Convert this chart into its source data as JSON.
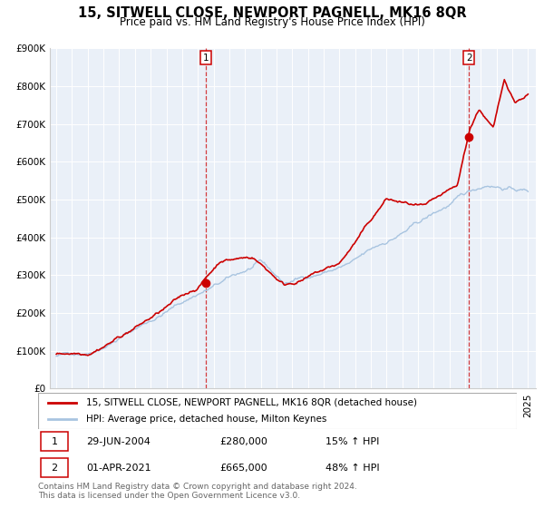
{
  "title": "15, SITWELL CLOSE, NEWPORT PAGNELL, MK16 8QR",
  "subtitle": "Price paid vs. HM Land Registry's House Price Index (HPI)",
  "ylim": [
    0,
    900000
  ],
  "yticks": [
    0,
    100000,
    200000,
    300000,
    400000,
    500000,
    600000,
    700000,
    800000,
    900000
  ],
  "ytick_labels": [
    "£0",
    "£100K",
    "£200K",
    "£300K",
    "£400K",
    "£500K",
    "£600K",
    "£700K",
    "£800K",
    "£900K"
  ],
  "xlim_start": 1994.6,
  "xlim_end": 2025.5,
  "hpi_color": "#a8c4e0",
  "price_color": "#cc0000",
  "background_color": "#eaf0f8",
  "sale1_x": 2004.49,
  "sale1_y": 280000,
  "sale1_label": "1",
  "sale2_x": 2021.25,
  "sale2_y": 665000,
  "sale2_label": "2",
  "legend_line1": "15, SITWELL CLOSE, NEWPORT PAGNELL, MK16 8QR (detached house)",
  "legend_line2": "HPI: Average price, detached house, Milton Keynes",
  "table_row1": [
    "1",
    "29-JUN-2004",
    "£280,000",
    "15% ↑ HPI"
  ],
  "table_row2": [
    "2",
    "01-APR-2021",
    "£665,000",
    "48% ↑ HPI"
  ],
  "footer": "Contains HM Land Registry data © Crown copyright and database right 2024.\nThis data is licensed under the Open Government Licence v3.0.",
  "title_fontsize": 10.5,
  "subtitle_fontsize": 8.5,
  "tick_fontsize": 7.5,
  "legend_fontsize": 7.5,
  "table_fontsize": 8,
  "footer_fontsize": 6.5
}
